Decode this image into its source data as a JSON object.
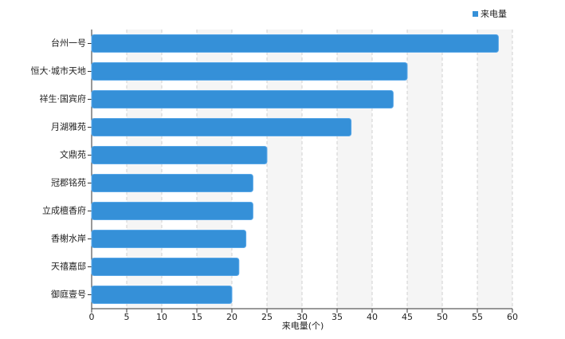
{
  "chart_data": {
    "type": "bar",
    "orientation": "horizontal",
    "categories": [
      "台州一号",
      "恒大·城市天地",
      "祥生·国宾府",
      "月湖雅苑",
      "文鼎苑",
      "冠郡铭苑",
      "立成檀香府",
      "香榭水岸",
      "天禧嘉邸",
      "御庭壹号"
    ],
    "series": [
      {
        "name": "来电量",
        "color": "#3590d8",
        "values": [
          58,
          45,
          43,
          37,
          25,
          23,
          23,
          22,
          21,
          20
        ]
      }
    ],
    "x_label": "来电量(个)",
    "xlim": [
      0,
      60
    ],
    "xticks": [
      0,
      5,
      10,
      15,
      20,
      25,
      30,
      35,
      40,
      45,
      50,
      55,
      60
    ],
    "grid": true,
    "legend": "top-right"
  }
}
